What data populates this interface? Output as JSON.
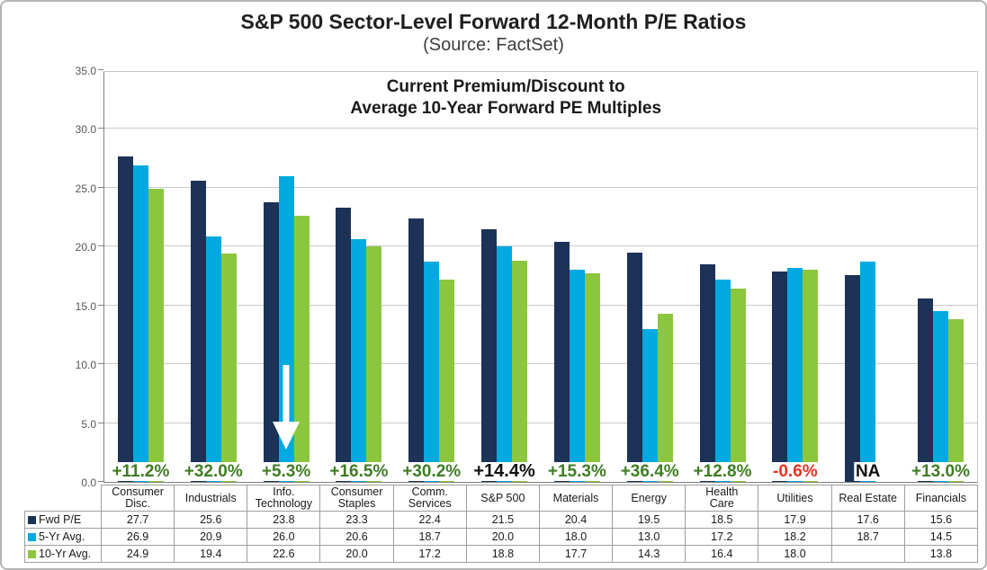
{
  "header": {
    "title": "S&P 500 Sector-Level Forward 12-Month P/E Ratios",
    "subtitle": "(Source: FactSet)"
  },
  "annotation": {
    "line1": "Current Premium/Discount to",
    "line2": "Average 10-Year Forward PE Multiples"
  },
  "colors": {
    "fwd_pe": "#1c3257",
    "five_yr_avg": "#00aae1",
    "ten_yr_avg": "#8cc63f",
    "premium_green": "#3e7d23",
    "premium_red": "#e63323",
    "premium_black": "#111111",
    "gridline": "#c9c9c9"
  },
  "chart_data": {
    "type": "bar",
    "title": "S&P 500 Sector-Level Forward 12-Month P/E Ratios",
    "source": "FactSet",
    "ylim": [
      0,
      35
    ],
    "ytick_step": 5,
    "ytick_labels": [
      "0.0",
      "5.0",
      "10.0",
      "15.0",
      "20.0",
      "25.0",
      "30.0",
      "35.0"
    ],
    "grid": true,
    "legend_position": "table-left",
    "categories": [
      "Consumer\nDisc.",
      "Industrials",
      "Info.\nTechnology",
      "Consumer\nStaples",
      "Comm.\nServices",
      "S&P 500",
      "Materials",
      "Energy",
      "Health\nCare",
      "Utilities",
      "Real Estate",
      "Financials"
    ],
    "series": [
      {
        "name": "Fwd P/E",
        "color": "#1c3257",
        "values": [
          27.7,
          25.6,
          23.8,
          23.3,
          22.4,
          21.5,
          20.4,
          19.5,
          18.5,
          17.9,
          17.6,
          15.6
        ]
      },
      {
        "name": "5-Yr Avg.",
        "color": "#00aae1",
        "values": [
          26.9,
          20.9,
          26.0,
          20.6,
          18.7,
          20.0,
          18.0,
          13.0,
          17.2,
          18.2,
          18.7,
          14.5
        ]
      },
      {
        "name": "10-Yr Avg.",
        "color": "#8cc63f",
        "values": [
          24.9,
          19.4,
          22.6,
          20.0,
          17.2,
          18.8,
          17.7,
          14.3,
          16.4,
          18.0,
          null,
          13.8
        ]
      }
    ],
    "premium_discount_labels": [
      {
        "text": "+11.2%",
        "color": "green"
      },
      {
        "text": "+32.0%",
        "color": "green"
      },
      {
        "text": "+5.3%",
        "color": "green"
      },
      {
        "text": "+16.5%",
        "color": "green"
      },
      {
        "text": "+30.2%",
        "color": "green"
      },
      {
        "text": "+14.4%",
        "color": "black",
        "emphasis": true
      },
      {
        "text": "+15.3%",
        "color": "green"
      },
      {
        "text": "+36.4%",
        "color": "green"
      },
      {
        "text": "+12.8%",
        "color": "green"
      },
      {
        "text": "-0.6%",
        "color": "red"
      },
      {
        "text": "NA",
        "color": "black"
      },
      {
        "text": "+13.0%",
        "color": "green"
      }
    ],
    "arrow": {
      "category_index": 2,
      "series_index": 1,
      "description": "white down arrow over Info. Technology 5-Yr Avg. bar"
    }
  }
}
